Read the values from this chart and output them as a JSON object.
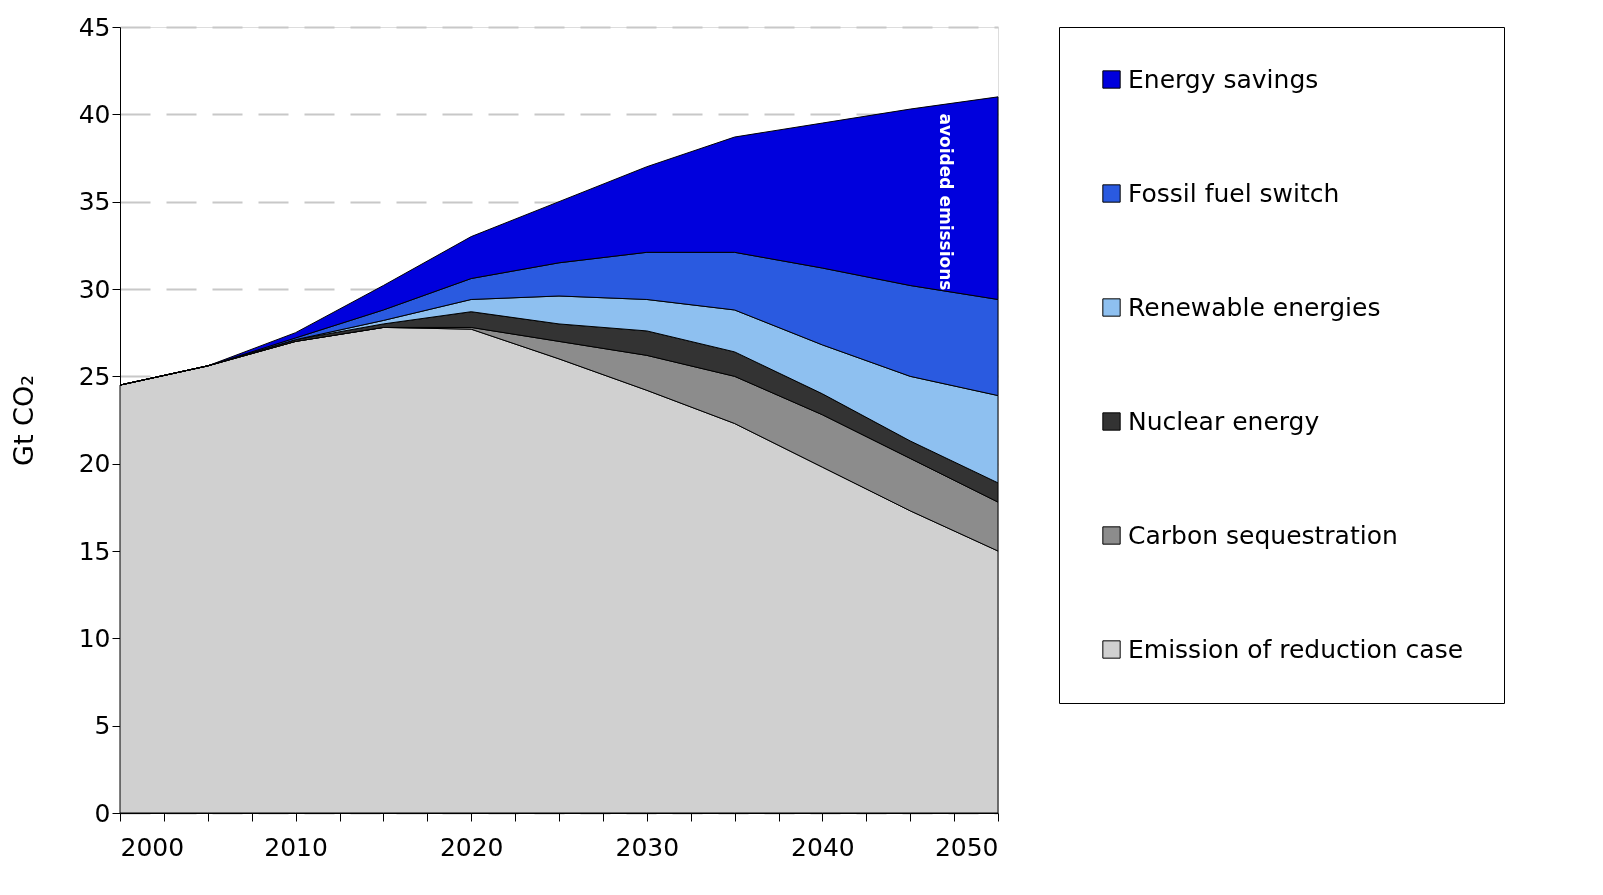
{
  "chart_data": {
    "type": "area",
    "stacked": true,
    "ylabel": "Gt CO₂",
    "x": [
      2000,
      2005,
      2010,
      2015,
      2020,
      2025,
      2030,
      2035,
      2040,
      2045,
      2050
    ],
    "series": [
      {
        "name": "Emission of reduction case",
        "color": "#d0d0d0",
        "values": [
          24.5,
          25.6,
          27.0,
          27.8,
          27.7,
          26.0,
          24.2,
          22.3,
          19.8,
          17.3,
          15.0
        ]
      },
      {
        "name": "Carbon sequestration",
        "color": "#8c8c8c",
        "values": [
          0,
          0,
          0,
          0,
          0.1,
          1.0,
          2.0,
          2.7,
          3.0,
          3.0,
          2.8
        ]
      },
      {
        "name": "Nuclear energy",
        "color": "#333333",
        "values": [
          0,
          0,
          0.1,
          0.2,
          0.9,
          1.0,
          1.4,
          1.4,
          1.2,
          1.0,
          1.1
        ]
      },
      {
        "name": "Renewable energies",
        "color": "#8ec0f0",
        "values": [
          0,
          0,
          0,
          0.2,
          0.7,
          1.6,
          1.8,
          2.4,
          2.8,
          3.7,
          5.0
        ]
      },
      {
        "name": "Fossil fuel switch",
        "color": "#2a5ae0",
        "values": [
          0,
          0,
          0.1,
          0.6,
          1.2,
          1.9,
          2.7,
          3.3,
          4.4,
          5.2,
          5.5
        ]
      },
      {
        "name": "Energy savings",
        "color": "#0000dd",
        "values": [
          0,
          0,
          0.3,
          1.4,
          2.4,
          3.5,
          4.9,
          6.6,
          8.3,
          10.1,
          11.6
        ]
      }
    ],
    "xlim": [
      2000,
      2050
    ],
    "xticks": [
      2000,
      {
        "value": 2002.5,
        "label": null
      },
      {
        "value": 2005,
        "label": null
      },
      {
        "value": 2007.5,
        "label": null
      },
      2010,
      {
        "value": 2012.5,
        "label": null
      },
      {
        "value": 2015,
        "label": null
      },
      {
        "value": 2017.5,
        "label": null
      },
      2020,
      {
        "value": 2022.5,
        "label": null
      },
      {
        "value": 2025,
        "label": null
      },
      {
        "value": 2027.5,
        "label": null
      },
      2030,
      {
        "value": 2032.5,
        "label": null
      },
      {
        "value": 2035,
        "label": null
      },
      {
        "value": 2037.5,
        "label": null
      },
      2040,
      {
        "value": 2042.5,
        "label": null
      },
      {
        "value": 2045,
        "label": null
      },
      {
        "value": 2047.5,
        "label": null
      },
      2050
    ],
    "ylim": [
      0,
      45
    ],
    "yticks": [
      0,
      5,
      10,
      15,
      20,
      25,
      30,
      35,
      40,
      45
    ],
    "grid": "y",
    "legend": "right",
    "annotations": [
      "avoided emissions"
    ]
  }
}
